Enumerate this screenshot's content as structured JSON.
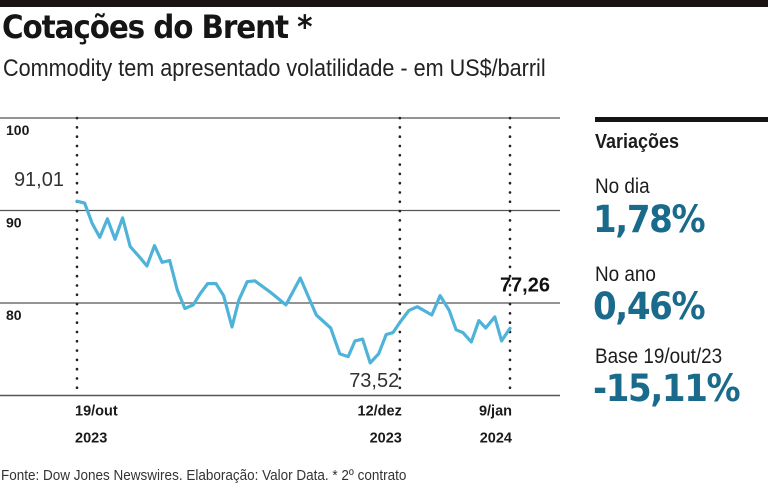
{
  "header": {
    "title": "Cotações do Brent *",
    "subtitle": "Commodity tem apresentado volatilidade - em US$/barril"
  },
  "colors": {
    "line": "#4fb3d9",
    "accent": "#1a6a8c",
    "text": "#1a1a1a",
    "grid": "#444444"
  },
  "chart_data": {
    "type": "line",
    "title": "Cotações do Brent *",
    "subtitle": "Commodity tem apresentado volatilidade - em US$/barril",
    "xlabel": "",
    "ylabel": "US$/barril",
    "ylim": [
      70,
      100
    ],
    "xlim": [
      0,
      57
    ],
    "yticks": [
      {
        "value": 100,
        "label": "100"
      },
      {
        "value": 90,
        "label": "90"
      },
      {
        "value": 80,
        "label": "80"
      }
    ],
    "grid": true,
    "xmarkers": [
      {
        "day": 0,
        "label": "19/out",
        "year": "2023"
      },
      {
        "day": 42.5,
        "label": "12/dez",
        "year": "2023"
      },
      {
        "day": 57,
        "label": "9/jan",
        "year": "2024"
      }
    ],
    "annotations": [
      {
        "day": 0,
        "value": 91.01,
        "label": "91,01",
        "position": "above-left"
      },
      {
        "day": 38.6,
        "value": 73.52,
        "label": "73,52",
        "position": "below"
      },
      {
        "day": 57,
        "value": 77.26,
        "label": "77,26",
        "position": "above"
      }
    ],
    "series": [
      {
        "name": "Brent",
        "days": [
          0,
          1,
          2,
          3,
          4,
          5,
          6,
          7,
          8.3,
          9.2,
          10.2,
          11.2,
          12.2,
          13.2,
          14.2,
          15.3,
          16.2,
          17.2,
          18.3,
          19.3,
          20.4,
          21.3,
          22.4,
          23.4,
          25.4,
          27.5,
          29.4,
          31.5,
          33.4,
          34.6,
          35.7,
          36.6,
          37.6,
          38.6,
          39.7,
          40.7,
          41.6,
          42.5,
          43.7,
          44.8,
          46.7,
          47.8,
          49,
          49.9,
          50.8,
          51.9,
          52.9,
          53.8,
          55,
          55.9,
          57
        ],
        "values": [
          91.01,
          90.8,
          88.6,
          87.1,
          89.1,
          86.9,
          89.2,
          86.1,
          84.9,
          84.0,
          86.2,
          84.4,
          84.6,
          81.4,
          79.4,
          79.8,
          81.0,
          82.1,
          82.1,
          80.8,
          77.4,
          80.3,
          82.3,
          82.4,
          81.2,
          79.8,
          82.7,
          78.7,
          77.3,
          74.5,
          74.2,
          75.9,
          76.1,
          73.52,
          74.5,
          76.6,
          76.8,
          77.9,
          79.2,
          79.6,
          78.7,
          80.8,
          79.2,
          77.1,
          76.8,
          75.8,
          78.1,
          77.3,
          78.5,
          75.9,
          77.26
        ]
      }
    ]
  },
  "panel": {
    "title": "Variações",
    "items": [
      {
        "label": "No dia",
        "value": "1,78%"
      },
      {
        "label": "No ano",
        "value": "0,46%"
      },
      {
        "label": "Base 19/out/23",
        "value": "-15,11%"
      }
    ]
  },
  "footer": {
    "source": "Fonte: Dow Jones Newswires. Elaboração: Valor Data. * 2º contrato"
  }
}
